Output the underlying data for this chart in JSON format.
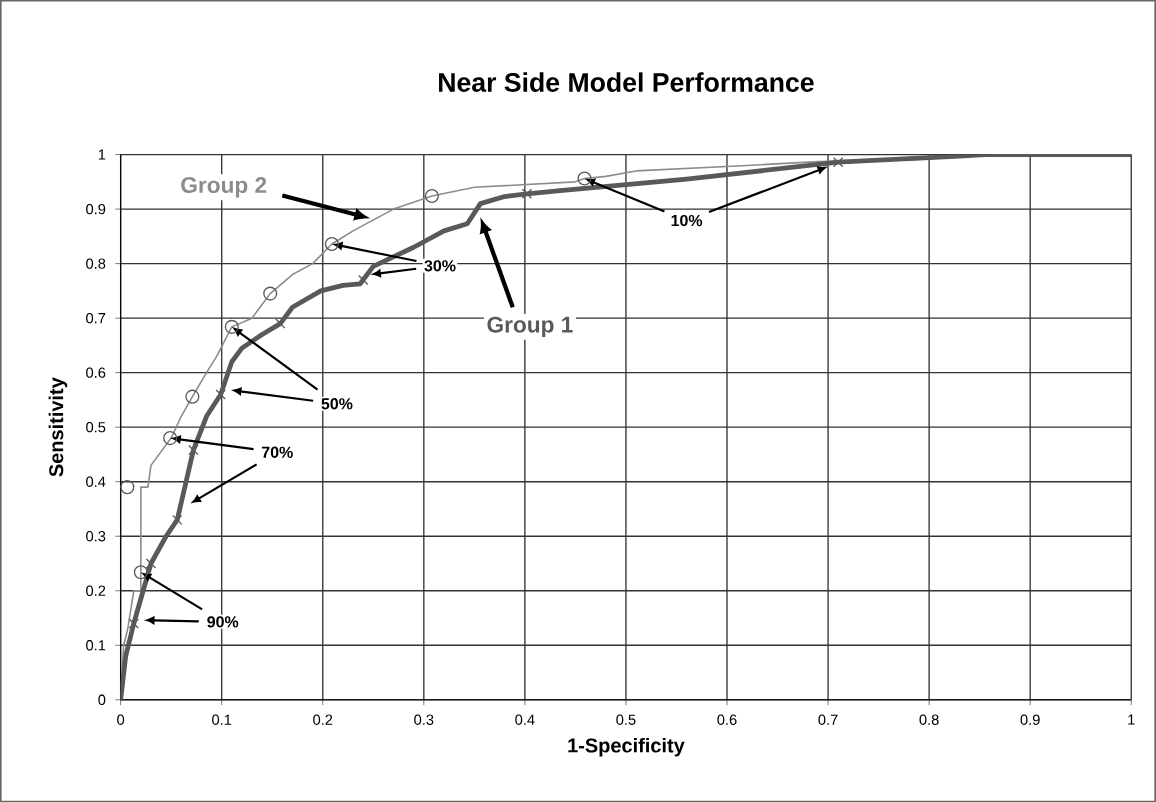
{
  "chart_data": {
    "type": "line",
    "title": "Near Side Model Performance",
    "xlabel": "1-Specificity",
    "ylabel": "Sensitivity",
    "xlim": [
      0,
      1
    ],
    "ylim": [
      0,
      1
    ],
    "xticks": [
      0,
      0.1,
      0.2,
      0.3,
      0.4,
      0.5,
      0.6,
      0.7,
      0.8,
      0.9,
      1
    ],
    "yticks": [
      0,
      0.1,
      0.2,
      0.3,
      0.4,
      0.5,
      0.6,
      0.7,
      0.8,
      0.9,
      1
    ],
    "grid": true,
    "series": [
      {
        "name": "Group 2",
        "color": "#8c8c8c",
        "marker": "none",
        "line_style": "solid",
        "x": [
          0,
          0.003,
          0.007,
          0.013,
          0.02,
          0.02,
          0.027,
          0.03,
          0.05,
          0.06,
          0.071,
          0.085,
          0.095,
          0.11,
          0.13,
          0.148,
          0.17,
          0.19,
          0.209,
          0.23,
          0.25,
          0.27,
          0.308,
          0.35,
          0.45,
          0.459,
          0.48,
          0.51,
          0.62,
          0.69,
          0.78,
          0.87,
          1
        ],
        "values": [
          0,
          0.1,
          0.13,
          0.2,
          0.2,
          0.39,
          0.39,
          0.43,
          0.48,
          0.52,
          0.556,
          0.6,
          0.63,
          0.684,
          0.7,
          0.745,
          0.78,
          0.8,
          0.836,
          0.86,
          0.88,
          0.9,
          0.924,
          0.94,
          0.95,
          0.956,
          0.96,
          0.97,
          0.98,
          0.987,
          0.99,
          1,
          1
        ]
      },
      {
        "name": "Group 1",
        "color": "#595959",
        "marker": "none",
        "line_style": "solid",
        "x": [
          0,
          0.005,
          0.013,
          0.03,
          0.045,
          0.056,
          0.072,
          0.085,
          0.099,
          0.11,
          0.12,
          0.14,
          0.158,
          0.17,
          0.198,
          0.22,
          0.237,
          0.25,
          0.29,
          0.32,
          0.343,
          0.356,
          0.38,
          0.402,
          0.435,
          0.56,
          0.71,
          0.83,
          0.856,
          1
        ],
        "values": [
          0,
          0.08,
          0.14,
          0.25,
          0.3,
          0.33,
          0.458,
          0.52,
          0.56,
          0.62,
          0.645,
          0.67,
          0.69,
          0.72,
          0.75,
          0.76,
          0.763,
          0.795,
          0.83,
          0.86,
          0.873,
          0.91,
          0.923,
          0.928,
          0.934,
          0.955,
          0.986,
          0.997,
          1,
          1
        ]
      },
      {
        "type": "scatter",
        "color": "#595959",
        "marker": "circle",
        "x": [
          0.0066,
          0.02,
          0.049,
          0.071,
          0.11,
          0.148,
          0.209,
          0.308,
          0.459
        ],
        "values": [
          0.39,
          0.234,
          0.48,
          0.556,
          0.684,
          0.745,
          0.836,
          0.924,
          0.956
        ]
      },
      {
        "type": "scatter",
        "color": "#595959",
        "marker": "cross",
        "x": [
          0.013,
          0.03,
          0.056,
          0.072,
          0.099,
          0.158,
          0.24,
          0.402,
          0.71
        ],
        "values": [
          0.14,
          0.25,
          0.33,
          0.458,
          0.56,
          0.69,
          0.77,
          0.928,
          0.986
        ]
      }
    ],
    "annotations": [
      {
        "text": "30%",
        "x": 0.209,
        "y": 0.836
      },
      {
        "text": "50%",
        "x": 0.11,
        "y": 0.684
      },
      {
        "text": "70%",
        "x": 0.049,
        "y": 0.48
      },
      {
        "text": "90%",
        "x": 0.02,
        "y": 0.234
      },
      {
        "text": "10%",
        "x": 0.459,
        "y": 0.956
      }
    ]
  }
}
